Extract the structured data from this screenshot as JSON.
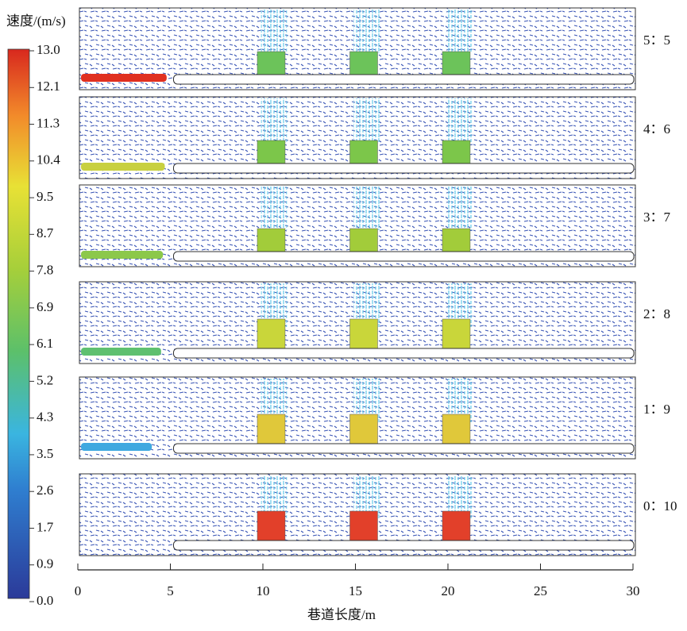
{
  "chart_data": {
    "type": "vector-field",
    "colorbar": {
      "label": "速度/(m/s)",
      "lim": [
        0,
        13
      ],
      "ticks": [
        {
          "value": 0,
          "label": "0.0"
        },
        {
          "value": 0.867,
          "label": "0.9"
        },
        {
          "value": 1.733,
          "label": "1.7"
        },
        {
          "value": 2.6,
          "label": "2.6"
        },
        {
          "value": 3.467,
          "label": "3.5"
        },
        {
          "value": 4.333,
          "label": "4.3"
        },
        {
          "value": 5.2,
          "label": "5.2"
        },
        {
          "value": 6.067,
          "label": "6.1"
        },
        {
          "value": 6.933,
          "label": "6.9"
        },
        {
          "value": 7.8,
          "label": "7.8"
        },
        {
          "value": 8.667,
          "label": "8.7"
        },
        {
          "value": 9.533,
          "label": "9.5"
        },
        {
          "value": 10.4,
          "label": "10.4"
        },
        {
          "value": 11.267,
          "label": "11.3"
        },
        {
          "value": 12.133,
          "label": "12.1"
        },
        {
          "value": 13,
          "label": "13.0"
        }
      ]
    },
    "xlabel": "巷道长度/m",
    "xlim": [
      0,
      30
    ],
    "xticks": [
      0,
      5,
      10,
      15,
      20,
      25,
      30
    ],
    "panels": [
      {
        "label": "5：5"
      },
      {
        "label": "4：6"
      },
      {
        "label": "3：7"
      },
      {
        "label": "2：8"
      },
      {
        "label": "1：9"
      },
      {
        "label": "0：10"
      }
    ]
  }
}
